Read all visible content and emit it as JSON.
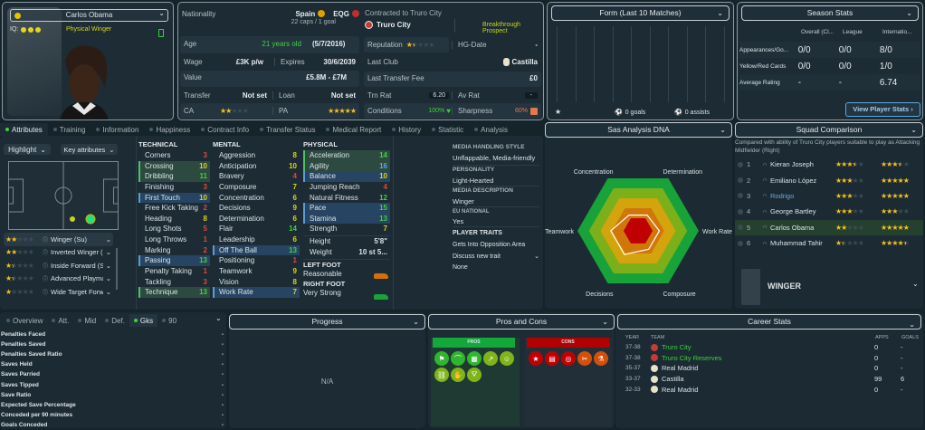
{
  "profile": {
    "name": "Carlos Obama",
    "iq_label": "IQ:",
    "iq_dots": 3,
    "role": "Physical Winger"
  },
  "info": {
    "nationality_label": "Nationality",
    "nation1": "Spain",
    "nation2": "EQG",
    "caps": "22 caps / 1 goal",
    "age_label": "Age",
    "age": "21 years old",
    "dob": "(5/7/2016)",
    "wage_label": "Wage",
    "wage": "£3K p/w",
    "expires_label": "Expires",
    "expires": "30/6/2039",
    "value_label": "Value",
    "value": "£5.8M - £7M",
    "transfer_label": "Transfer",
    "transfer": "Not set",
    "loan_label": "Loan",
    "loan": "Not set",
    "ca_label": "CA",
    "ca_stars": 2,
    "pa_label": "PA",
    "pa_stars": 5,
    "contracted": "Contracted to Truro City",
    "club": "Truro City",
    "prospect": "Breakthrough Prospect",
    "reputation_label": "Reputation",
    "reputation_stars": 1.5,
    "hg_label": "HG-Date",
    "hg": "-",
    "lastclub_label": "Last Club",
    "lastclub": "Castilla",
    "fee_label": "Last Transfer Fee",
    "fee": "£0",
    "trn_label": "Trn Rat",
    "trn": "6.20",
    "av_label": "Av Rat",
    "av": "-",
    "cond_label": "Conditions",
    "cond": "100%",
    "sharp_label": "Sharpness",
    "sharp": "60%"
  },
  "form": {
    "title": "Form (Last 10 Matches)",
    "goals": "0 goals",
    "assists": "0 assists"
  },
  "season": {
    "title": "Season Stats",
    "cols": [
      "Overall (Cl...",
      "League",
      "Internatio..."
    ],
    "rows": [
      {
        "label": "Appearances/Go...",
        "v": [
          "0/0",
          "0/0",
          "8/0"
        ]
      },
      {
        "label": "Yellow/Red Cards",
        "v": [
          "0/0",
          "0/0",
          "1/0"
        ]
      },
      {
        "label": "Average Rating",
        "v": [
          "-",
          "-",
          "6.74"
        ]
      }
    ],
    "button": "View Player Stats ›"
  },
  "tabs": [
    "Attributes",
    "Training",
    "Information",
    "Happiness",
    "Contract Info",
    "Transfer Status",
    "Medical Report",
    "History",
    "Statistic",
    "Analysis"
  ],
  "attr_controls": {
    "highlight": "Highlight",
    "key": "Key attributes"
  },
  "roles": [
    {
      "name": "Winger (Su)",
      "stars": 2
    },
    {
      "name": "Inverted Winger (Su)",
      "stars": 2
    },
    {
      "name": "Inside Forward (Su)",
      "stars": 1.5
    },
    {
      "name": "Advanced Playmak...",
      "stars": 1.5
    },
    {
      "name": "Wide Target Forwar...",
      "stars": 1
    }
  ],
  "technical": {
    "title": "TECHNICAL",
    "items": [
      [
        "Corners",
        3,
        ""
      ],
      [
        "Crossing",
        10,
        "g"
      ],
      [
        "Dribbling",
        11,
        "g"
      ],
      [
        "Finishing",
        3,
        ""
      ],
      [
        "First Touch",
        10,
        "b"
      ],
      [
        "Free Kick Taking",
        2,
        ""
      ],
      [
        "Heading",
        8,
        ""
      ],
      [
        "Long Shots",
        5,
        ""
      ],
      [
        "Long Throws",
        1,
        ""
      ],
      [
        "Marking",
        2,
        ""
      ],
      [
        "Passing",
        13,
        "b"
      ],
      [
        "Penalty Taking",
        1,
        ""
      ],
      [
        "Tackling",
        3,
        ""
      ],
      [
        "Technique",
        13,
        "g"
      ]
    ]
  },
  "mental": {
    "title": "MENTAL",
    "items": [
      [
        "Aggression",
        8,
        ""
      ],
      [
        "Anticipation",
        10,
        ""
      ],
      [
        "Bravery",
        4,
        ""
      ],
      [
        "Composure",
        7,
        ""
      ],
      [
        "Concentration",
        6,
        ""
      ],
      [
        "Decisions",
        9,
        ""
      ],
      [
        "Determination",
        6,
        ""
      ],
      [
        "Flair",
        14,
        ""
      ],
      [
        "Leadership",
        6,
        ""
      ],
      [
        "Off The Ball",
        13,
        "b"
      ],
      [
        "Positioning",
        1,
        ""
      ],
      [
        "Teamwork",
        9,
        ""
      ],
      [
        "Vision",
        8,
        ""
      ],
      [
        "Work Rate",
        7,
        "b"
      ]
    ]
  },
  "physical": {
    "title": "PHYSICAL",
    "items": [
      [
        "Acceleration",
        14,
        "g"
      ],
      [
        "Agility",
        16,
        "g"
      ],
      [
        "Balance",
        10,
        "b"
      ],
      [
        "Jumping Reach",
        4,
        ""
      ],
      [
        "Natural Fitness",
        12,
        ""
      ],
      [
        "Pace",
        15,
        "b"
      ],
      [
        "Stamina",
        13,
        "b"
      ],
      [
        "Strength",
        7,
        ""
      ]
    ],
    "height_label": "Height",
    "height": "5'8\"",
    "weight_label": "Weight",
    "weight": "10 st 5...",
    "left_foot_label": "LEFT FOOT",
    "left_foot": "Reasonable",
    "right_foot_label": "RIGHT FOOT",
    "right_foot": "Very Strong"
  },
  "media": {
    "style_label": "MEDIA HANDLING STYLE",
    "style": "Unflappable, Media-friendly",
    "personality_label": "PERSONALITY",
    "personality": "Light-Hearted",
    "desc_label": "MEDIA DESCRIPTION",
    "desc": "Winger",
    "eu_label": "EU NATIONAL",
    "eu": "Yes",
    "traits_label": "PLAYER TRAITS",
    "trait": "Gets Into Opposition Area",
    "discuss": "Discuss new trait",
    "none": "None"
  },
  "dna": {
    "title": "Sas Analysis DNA",
    "axes": [
      {
        "name": "Work Rate",
        "value": 7
      },
      {
        "name": "Determination",
        "value": 6
      },
      {
        "name": "Concentration",
        "value": 6
      },
      {
        "name": "Teamwork",
        "value": 9
      },
      {
        "name": "Decisions",
        "value": 9
      },
      {
        "name": "Composure",
        "value": 7
      }
    ],
    "max": 20,
    "ring_colors": [
      "#17a23a",
      "#7bb01b",
      "#d4a40c",
      "#d17608",
      "#c00000"
    ]
  },
  "squad": {
    "title": "Squad Comparison",
    "desc": "Compared with ability of Truro City players suitable to play as Attacking Midfielder (Right)",
    "players": [
      {
        "rank": "1",
        "name": "Kieran Joseph",
        "cur": 3.5,
        "pot": 3.5
      },
      {
        "rank": "2",
        "name": "Emiliano López",
        "cur": 3,
        "pot": 5
      },
      {
        "rank": "3",
        "name": "Rodrigo",
        "cur": 3,
        "pot": 5,
        "link": true
      },
      {
        "rank": "4",
        "name": "George Bartley",
        "cur": 3,
        "pot": 3
      },
      {
        "rank": "5",
        "name": "Carlos Obama",
        "cur": 2,
        "pot": 5,
        "sel": true
      },
      {
        "rank": "6",
        "name": "Muhammad Tahir",
        "cur": 1.5,
        "pot": 4.5
      }
    ],
    "position": "WINGER"
  },
  "stats": {
    "tabs": [
      "Overview",
      "Att.",
      "Mid",
      "Def.",
      "Gks",
      "90"
    ],
    "active": 4,
    "rows": [
      [
        "Penalties Faced",
        "-"
      ],
      [
        "Penalties Saved",
        "-"
      ],
      [
        "Penalties Saved Ratio",
        "-"
      ],
      [
        "Saves Held",
        "-"
      ],
      [
        "Saves Parried",
        "-"
      ],
      [
        "Saves Tipped",
        "-"
      ],
      [
        "Save Ratio",
        "-"
      ],
      [
        "Expected Save Percentage",
        "-"
      ],
      [
        "Conceded per 90 minutes",
        "-"
      ],
      [
        "Goals Conceded",
        "-"
      ]
    ]
  },
  "progress": {
    "title": "Progress",
    "na": "N/A"
  },
  "proscons": {
    "title": "Pros and Cons",
    "pros_label": "PROS",
    "cons_label": "CONS",
    "pros": [
      "flag-icon",
      "cross-curve-icon",
      "tactics-board-icon",
      "trend-up-icon",
      "brain-icon",
      "chain-icon",
      "handshake-icon",
      "boot-icon"
    ],
    "cons": [
      "star-icon",
      "goal-icon",
      "target-icon",
      "tools-icon",
      "flask-icon"
    ]
  },
  "career": {
    "title": "Career Stats",
    "cols": [
      "YEAR",
      "TEAM",
      "APPS",
      "GOALS"
    ],
    "rows": [
      [
        "37-38",
        "Truro City",
        "0",
        "-",
        true
      ],
      [
        "37-38",
        "Truro City Reserves",
        "0",
        "-",
        true
      ],
      [
        "35-37",
        "Real Madrid",
        "0",
        "-",
        false
      ],
      [
        "33-37",
        "Castilla",
        "99",
        "6",
        false
      ],
      [
        "32-33",
        "Real Madrid",
        "0",
        "-",
        false
      ]
    ]
  },
  "colors": {
    "low": "#e0473f",
    "mid": "#d9d41c",
    "high": "#3fd13f",
    "top": "#5aa8e0",
    "accent_green": "#3fd13f"
  }
}
